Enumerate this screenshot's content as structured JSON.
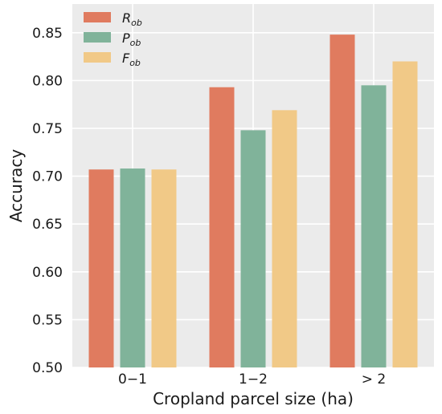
{
  "chart_data": {
    "type": "bar",
    "categories": [
      "0−1",
      "1−2",
      "> 2"
    ],
    "series": [
      {
        "name": "R",
        "subscript": "ob",
        "color": "#E07B5F",
        "values": [
          0.707,
          0.793,
          0.848
        ]
      },
      {
        "name": "P",
        "subscript": "ob",
        "color": "#80B39A",
        "values": [
          0.708,
          0.748,
          0.795
        ]
      },
      {
        "name": "F",
        "subscript": "ob",
        "color": "#F1C987",
        "values": [
          0.707,
          0.769,
          0.82
        ]
      }
    ],
    "xlabel": "Cropland parcel size (ha)",
    "ylabel": "Accuracy",
    "ylim": [
      0.5,
      0.88
    ],
    "yticks": [
      "0.50",
      "0.55",
      "0.60",
      "0.65",
      "0.70",
      "0.75",
      "0.80",
      "0.85"
    ],
    "grid": true,
    "legend_position": "top-left",
    "background_color": "#EBEBEB",
    "grid_color": "#FFFFFF"
  }
}
